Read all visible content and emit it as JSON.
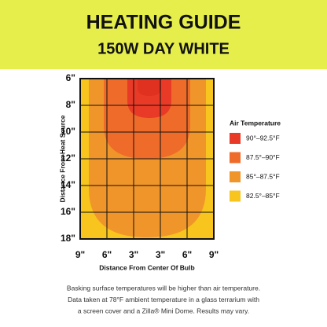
{
  "header": {
    "title": "HEATING GUIDE",
    "subtitle": "150W DAY WHITE"
  },
  "diagram": {
    "y_axis_label": "Distance From Heat Source",
    "x_axis_label": "Distance From Center Of Bulb",
    "y_ticks": [
      "6\"",
      "8\"",
      "10\"",
      "12\"",
      "14\"",
      "16\"",
      "18\""
    ],
    "x_ticks": [
      "9\"",
      "6\"",
      "3\"",
      "3\"",
      "6\"",
      "9\""
    ]
  },
  "legend": {
    "title": "Air Temperature",
    "items": [
      {
        "label": "90°–92.5°F",
        "color": "#e83a26"
      },
      {
        "label": "87.5°–90°F",
        "color": "#ee6b2a"
      },
      {
        "label": "85°–87.5°F",
        "color": "#f0952a"
      },
      {
        "label": "82.5°–85°F",
        "color": "#f7c51e"
      }
    ]
  },
  "footer": {
    "lines": [
      "Basking surface temperatures will be higher than air temperature.",
      "Data taken at 78°F ambient temperature in a glass terrarium with",
      "a screen cover and a Zilla® Mini Dome. Results may vary."
    ]
  }
}
